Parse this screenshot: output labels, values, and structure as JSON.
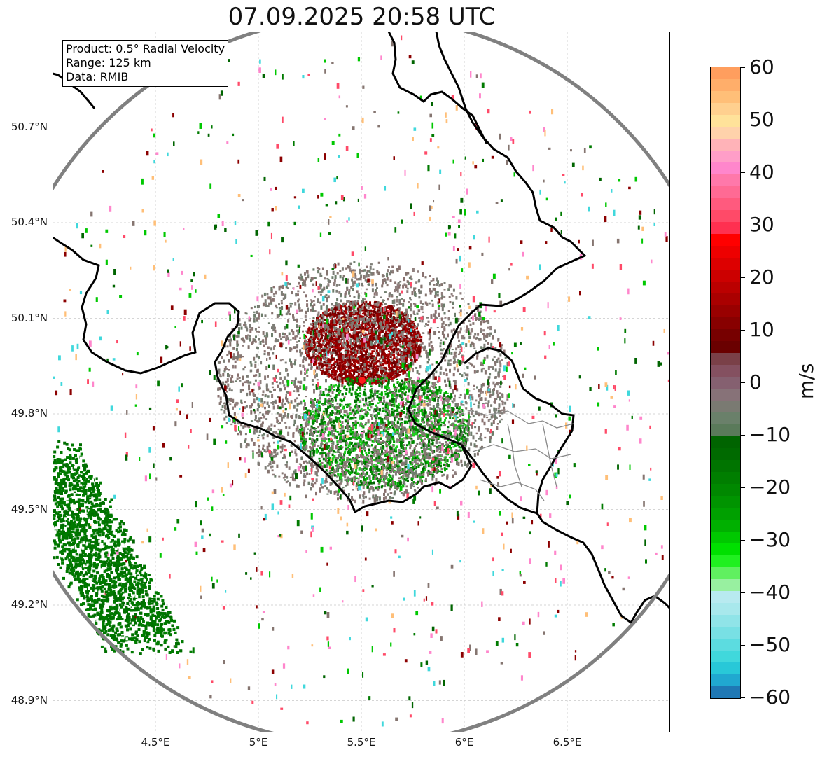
{
  "title": "07.09.2025 20:58 UTC",
  "info_box": {
    "product": "Product: 0.5° Radial Velocity",
    "range": "Range: 125 km",
    "data": "Data: RMIB"
  },
  "map": {
    "lon_range": [
      4.0,
      7.0
    ],
    "lat_range": [
      48.8,
      51.0
    ],
    "radar_site": {
      "lon": 5.5,
      "lat": 49.915
    },
    "range_ring_color": "#808080",
    "border_color": "#000000",
    "admin_border_color": "#888888",
    "lat_ticks": [
      {
        "value": 50.7,
        "label": "50.7°N"
      },
      {
        "value": 50.4,
        "label": "50.4°N"
      },
      {
        "value": 50.1,
        "label": "50.1°N"
      },
      {
        "value": 49.8,
        "label": "49.8°N"
      },
      {
        "value": 49.5,
        "label": "49.5°N"
      },
      {
        "value": 49.2,
        "label": "49.2°N"
      },
      {
        "value": 48.9,
        "label": "48.9°N"
      }
    ],
    "lon_ticks": [
      {
        "value": 4.5,
        "label": "4.5°E"
      },
      {
        "value": 5.0,
        "label": "5°E"
      },
      {
        "value": 5.5,
        "label": "5.5°E"
      },
      {
        "value": 6.0,
        "label": "6°E"
      },
      {
        "value": 6.5,
        "label": "6.5°E"
      }
    ]
  },
  "colorbar": {
    "unit": "m/s",
    "range": [
      -60,
      60
    ],
    "ticks": [
      "60",
      "50",
      "40",
      "30",
      "20",
      "10",
      "0",
      "−10",
      "−20",
      "−30",
      "−40",
      "−50",
      "−60"
    ],
    "colors_top_to_bottom": [
      "#ff9e5e",
      "#ffae6a",
      "#ffbf78",
      "#ffd08f",
      "#ffe29a",
      "#ffd2ab",
      "#ffb3b8",
      "#ff9ec8",
      "#ff86cc",
      "#ff78aa",
      "#ff6a94",
      "#ff5a7e",
      "#ff4a68",
      "#ff3050",
      "#ff0000",
      "#ee0000",
      "#dd0000",
      "#cc0000",
      "#bb0000",
      "#aa0000",
      "#990000",
      "#880000",
      "#770000",
      "#6a0000",
      "#7a4048",
      "#845060",
      "#856070",
      "#877278",
      "#7a7a72",
      "#6a806a",
      "#5a7a5a",
      "#006400",
      "#006a00",
      "#007400",
      "#007e00",
      "#008800",
      "#009400",
      "#00a000",
      "#00b000",
      "#00c800",
      "#00e000",
      "#20f020",
      "#60f060",
      "#98f0a0",
      "#b8eaf0",
      "#a8e8ec",
      "#90e4e8",
      "#78e0e4",
      "#5cdce0",
      "#40d8dc",
      "#28c8d8",
      "#20a8d0",
      "#1f78b4"
    ]
  }
}
